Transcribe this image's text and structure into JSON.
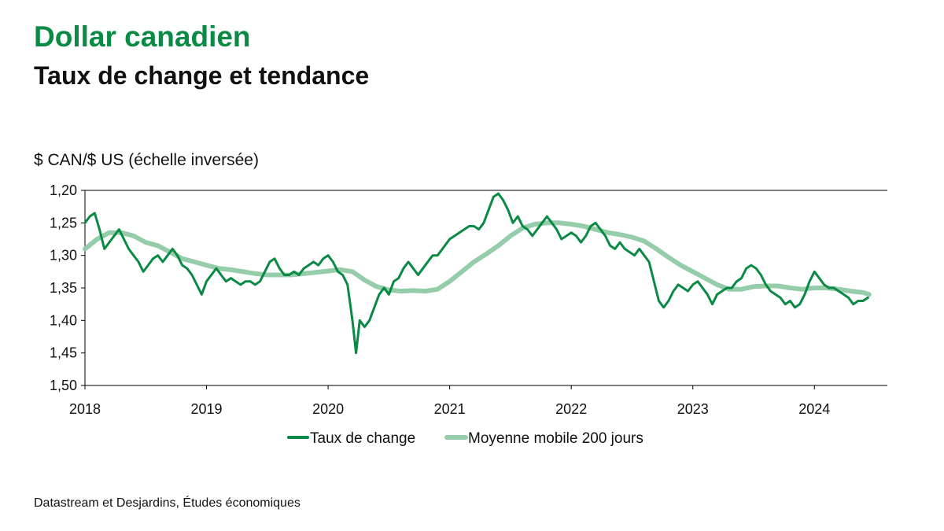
{
  "chart_data": {
    "type": "line",
    "title": "Dollar canadien",
    "subtitle": "Taux de change et tendance",
    "ylabel": "$ CAN/$ US (échelle inversée)",
    "xlabel": "",
    "y_inverted": true,
    "ylim": [
      1.2,
      1.5
    ],
    "y_ticks": [
      {
        "value": 1.2,
        "label": "1,20"
      },
      {
        "value": 1.25,
        "label": "1,25"
      },
      {
        "value": 1.3,
        "label": "1,30"
      },
      {
        "value": 1.35,
        "label": "1,35"
      },
      {
        "value": 1.4,
        "label": "1,40"
      },
      {
        "value": 1.45,
        "label": "1,45"
      },
      {
        "value": 1.5,
        "label": "1,50"
      }
    ],
    "xlim": [
      2018.0,
      2024.6
    ],
    "x_ticks": [
      {
        "value": 2018,
        "label": "2018"
      },
      {
        "value": 2019,
        "label": "2019"
      },
      {
        "value": 2020,
        "label": "2020"
      },
      {
        "value": 2021,
        "label": "2021"
      },
      {
        "value": 2022,
        "label": "2022"
      },
      {
        "value": 2023,
        "label": "2023"
      },
      {
        "value": 2024,
        "label": "2024"
      }
    ],
    "grid": false,
    "legend_position": "bottom",
    "series": [
      {
        "name": "Taux de change",
        "color": "#0a8a44",
        "points": [
          [
            2018.0,
            1.25
          ],
          [
            2018.04,
            1.24
          ],
          [
            2018.08,
            1.235
          ],
          [
            2018.12,
            1.26
          ],
          [
            2018.16,
            1.29
          ],
          [
            2018.2,
            1.28
          ],
          [
            2018.24,
            1.27
          ],
          [
            2018.28,
            1.26
          ],
          [
            2018.32,
            1.275
          ],
          [
            2018.36,
            1.29
          ],
          [
            2018.4,
            1.3
          ],
          [
            2018.44,
            1.31
          ],
          [
            2018.48,
            1.325
          ],
          [
            2018.52,
            1.315
          ],
          [
            2018.56,
            1.305
          ],
          [
            2018.6,
            1.3
          ],
          [
            2018.64,
            1.31
          ],
          [
            2018.68,
            1.3
          ],
          [
            2018.72,
            1.29
          ],
          [
            2018.76,
            1.3
          ],
          [
            2018.8,
            1.315
          ],
          [
            2018.84,
            1.32
          ],
          [
            2018.88,
            1.33
          ],
          [
            2018.92,
            1.345
          ],
          [
            2018.96,
            1.36
          ],
          [
            2019.0,
            1.34
          ],
          [
            2019.04,
            1.33
          ],
          [
            2019.08,
            1.32
          ],
          [
            2019.12,
            1.33
          ],
          [
            2019.16,
            1.34
          ],
          [
            2019.2,
            1.335
          ],
          [
            2019.24,
            1.34
          ],
          [
            2019.28,
            1.345
          ],
          [
            2019.32,
            1.34
          ],
          [
            2019.36,
            1.34
          ],
          [
            2019.4,
            1.345
          ],
          [
            2019.44,
            1.34
          ],
          [
            2019.48,
            1.325
          ],
          [
            2019.52,
            1.31
          ],
          [
            2019.56,
            1.305
          ],
          [
            2019.6,
            1.32
          ],
          [
            2019.64,
            1.33
          ],
          [
            2019.68,
            1.33
          ],
          [
            2019.72,
            1.325
          ],
          [
            2019.76,
            1.33
          ],
          [
            2019.8,
            1.32
          ],
          [
            2019.84,
            1.315
          ],
          [
            2019.88,
            1.31
          ],
          [
            2019.92,
            1.315
          ],
          [
            2019.96,
            1.305
          ],
          [
            2020.0,
            1.3
          ],
          [
            2020.04,
            1.31
          ],
          [
            2020.08,
            1.325
          ],
          [
            2020.12,
            1.33
          ],
          [
            2020.16,
            1.345
          ],
          [
            2020.2,
            1.4
          ],
          [
            2020.23,
            1.45
          ],
          [
            2020.26,
            1.4
          ],
          [
            2020.3,
            1.41
          ],
          [
            2020.34,
            1.4
          ],
          [
            2020.38,
            1.38
          ],
          [
            2020.42,
            1.36
          ],
          [
            2020.46,
            1.35
          ],
          [
            2020.5,
            1.36
          ],
          [
            2020.54,
            1.34
          ],
          [
            2020.58,
            1.335
          ],
          [
            2020.62,
            1.32
          ],
          [
            2020.66,
            1.31
          ],
          [
            2020.7,
            1.32
          ],
          [
            2020.74,
            1.33
          ],
          [
            2020.78,
            1.32
          ],
          [
            2020.82,
            1.31
          ],
          [
            2020.86,
            1.3
          ],
          [
            2020.9,
            1.3
          ],
          [
            2020.94,
            1.29
          ],
          [
            2021.0,
            1.275
          ],
          [
            2021.04,
            1.27
          ],
          [
            2021.08,
            1.265
          ],
          [
            2021.12,
            1.26
          ],
          [
            2021.16,
            1.255
          ],
          [
            2021.2,
            1.255
          ],
          [
            2021.24,
            1.26
          ],
          [
            2021.28,
            1.25
          ],
          [
            2021.32,
            1.23
          ],
          [
            2021.36,
            1.21
          ],
          [
            2021.4,
            1.205
          ],
          [
            2021.44,
            1.215
          ],
          [
            2021.48,
            1.23
          ],
          [
            2021.52,
            1.25
          ],
          [
            2021.56,
            1.24
          ],
          [
            2021.6,
            1.255
          ],
          [
            2021.64,
            1.26
          ],
          [
            2021.68,
            1.27
          ],
          [
            2021.72,
            1.26
          ],
          [
            2021.76,
            1.25
          ],
          [
            2021.8,
            1.24
          ],
          [
            2021.84,
            1.25
          ],
          [
            2021.88,
            1.26
          ],
          [
            2021.92,
            1.275
          ],
          [
            2021.96,
            1.27
          ],
          [
            2022.0,
            1.265
          ],
          [
            2022.04,
            1.27
          ],
          [
            2022.08,
            1.28
          ],
          [
            2022.12,
            1.27
          ],
          [
            2022.16,
            1.255
          ],
          [
            2022.2,
            1.25
          ],
          [
            2022.24,
            1.26
          ],
          [
            2022.28,
            1.27
          ],
          [
            2022.32,
            1.285
          ],
          [
            2022.36,
            1.29
          ],
          [
            2022.4,
            1.28
          ],
          [
            2022.44,
            1.29
          ],
          [
            2022.48,
            1.295
          ],
          [
            2022.52,
            1.3
          ],
          [
            2022.56,
            1.29
          ],
          [
            2022.6,
            1.3
          ],
          [
            2022.64,
            1.31
          ],
          [
            2022.68,
            1.34
          ],
          [
            2022.72,
            1.37
          ],
          [
            2022.76,
            1.38
          ],
          [
            2022.8,
            1.37
          ],
          [
            2022.84,
            1.355
          ],
          [
            2022.88,
            1.345
          ],
          [
            2022.92,
            1.35
          ],
          [
            2022.96,
            1.355
          ],
          [
            2023.0,
            1.345
          ],
          [
            2023.04,
            1.34
          ],
          [
            2023.08,
            1.35
          ],
          [
            2023.12,
            1.36
          ],
          [
            2023.16,
            1.375
          ],
          [
            2023.2,
            1.36
          ],
          [
            2023.24,
            1.355
          ],
          [
            2023.28,
            1.35
          ],
          [
            2023.32,
            1.35
          ],
          [
            2023.36,
            1.34
          ],
          [
            2023.4,
            1.335
          ],
          [
            2023.44,
            1.32
          ],
          [
            2023.48,
            1.315
          ],
          [
            2023.52,
            1.32
          ],
          [
            2023.56,
            1.33
          ],
          [
            2023.6,
            1.345
          ],
          [
            2023.64,
            1.355
          ],
          [
            2023.68,
            1.36
          ],
          [
            2023.72,
            1.365
          ],
          [
            2023.76,
            1.375
          ],
          [
            2023.8,
            1.37
          ],
          [
            2023.84,
            1.38
          ],
          [
            2023.88,
            1.375
          ],
          [
            2023.92,
            1.36
          ],
          [
            2023.96,
            1.34
          ],
          [
            2024.0,
            1.325
          ],
          [
            2024.04,
            1.335
          ],
          [
            2024.08,
            1.345
          ],
          [
            2024.12,
            1.35
          ],
          [
            2024.16,
            1.35
          ],
          [
            2024.2,
            1.355
          ],
          [
            2024.24,
            1.36
          ],
          [
            2024.28,
            1.365
          ],
          [
            2024.32,
            1.375
          ],
          [
            2024.36,
            1.37
          ],
          [
            2024.4,
            1.37
          ],
          [
            2024.44,
            1.365
          ]
        ]
      },
      {
        "name": "Moyenne mobile 200 jours",
        "color": "#95ccaa",
        "points": [
          [
            2018.0,
            1.29
          ],
          [
            2018.1,
            1.275
          ],
          [
            2018.2,
            1.265
          ],
          [
            2018.3,
            1.265
          ],
          [
            2018.4,
            1.27
          ],
          [
            2018.5,
            1.28
          ],
          [
            2018.6,
            1.285
          ],
          [
            2018.7,
            1.295
          ],
          [
            2018.8,
            1.305
          ],
          [
            2018.9,
            1.31
          ],
          [
            2019.0,
            1.315
          ],
          [
            2019.1,
            1.32
          ],
          [
            2019.2,
            1.322
          ],
          [
            2019.3,
            1.325
          ],
          [
            2019.4,
            1.328
          ],
          [
            2019.5,
            1.33
          ],
          [
            2019.6,
            1.33
          ],
          [
            2019.7,
            1.33
          ],
          [
            2019.8,
            1.328
          ],
          [
            2019.9,
            1.326
          ],
          [
            2020.0,
            1.324
          ],
          [
            2020.1,
            1.322
          ],
          [
            2020.2,
            1.325
          ],
          [
            2020.3,
            1.338
          ],
          [
            2020.4,
            1.348
          ],
          [
            2020.5,
            1.353
          ],
          [
            2020.6,
            1.355
          ],
          [
            2020.7,
            1.354
          ],
          [
            2020.8,
            1.355
          ],
          [
            2020.9,
            1.352
          ],
          [
            2021.0,
            1.34
          ],
          [
            2021.1,
            1.325
          ],
          [
            2021.2,
            1.31
          ],
          [
            2021.3,
            1.298
          ],
          [
            2021.4,
            1.285
          ],
          [
            2021.5,
            1.27
          ],
          [
            2021.6,
            1.258
          ],
          [
            2021.7,
            1.252
          ],
          [
            2021.8,
            1.25
          ],
          [
            2021.9,
            1.25
          ],
          [
            2022.0,
            1.252
          ],
          [
            2022.1,
            1.255
          ],
          [
            2022.2,
            1.26
          ],
          [
            2022.3,
            1.265
          ],
          [
            2022.4,
            1.268
          ],
          [
            2022.5,
            1.272
          ],
          [
            2022.6,
            1.278
          ],
          [
            2022.7,
            1.29
          ],
          [
            2022.8,
            1.303
          ],
          [
            2022.9,
            1.315
          ],
          [
            2023.0,
            1.325
          ],
          [
            2023.1,
            1.335
          ],
          [
            2023.2,
            1.345
          ],
          [
            2023.3,
            1.352
          ],
          [
            2023.4,
            1.352
          ],
          [
            2023.5,
            1.348
          ],
          [
            2023.6,
            1.347
          ],
          [
            2023.7,
            1.347
          ],
          [
            2023.8,
            1.35
          ],
          [
            2023.9,
            1.352
          ],
          [
            2024.0,
            1.35
          ],
          [
            2024.1,
            1.35
          ],
          [
            2024.2,
            1.352
          ],
          [
            2024.3,
            1.355
          ],
          [
            2024.4,
            1.357
          ],
          [
            2024.45,
            1.36
          ]
        ]
      }
    ]
  },
  "source": "Datastream et Desjardins, Études économiques"
}
